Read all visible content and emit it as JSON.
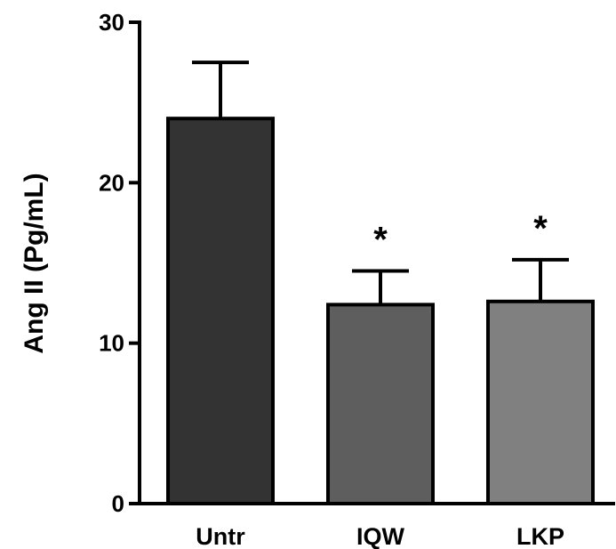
{
  "chart_data": {
    "type": "bar",
    "title": "",
    "xlabel": "",
    "ylabel": "Ang II (Pg/mL)",
    "ylim": [
      0,
      30
    ],
    "yticks": [
      "0",
      "10",
      "20",
      "30"
    ],
    "categories": [
      "Untr",
      "IQW",
      "LKP"
    ],
    "values": [
      24.0,
      12.4,
      12.6
    ],
    "errors": [
      3.5,
      2.1,
      2.6
    ],
    "annotations": [
      "",
      "*",
      "*"
    ],
    "bar_colors": [
      "#333333",
      "#5e5e5e",
      "#808080"
    ],
    "outline_color": "#000000",
    "grid": false,
    "legend": "none"
  }
}
